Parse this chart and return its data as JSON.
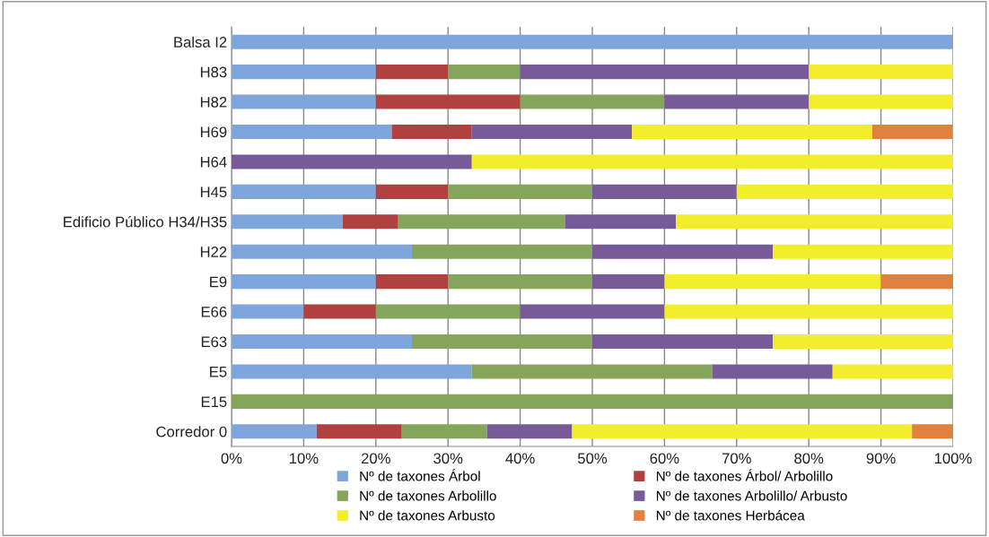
{
  "chart_data": {
    "type": "bar",
    "orientation": "horizontal",
    "stacked": true,
    "categories": [
      "Balsa I2",
      "H83",
      "H82",
      "H69",
      "H64",
      "H45",
      "Edificio Público H34/H35",
      "H22",
      "E9",
      "E66",
      "E63",
      "E5",
      "E15",
      "Corredor 0"
    ],
    "series": [
      {
        "name": "Nº de taxones Árbol",
        "color": "#7ea6dc",
        "values": [
          100,
          20,
          20,
          22.2,
          0,
          20,
          15.4,
          25,
          20,
          10,
          25,
          33.3,
          0,
          11.8
        ]
      },
      {
        "name": "Nº de taxones Árbol/ Arbolillo",
        "color": "#b0413e",
        "values": [
          0,
          10,
          20,
          11.1,
          0,
          10,
          7.7,
          0,
          10,
          10,
          0,
          0,
          0,
          11.8
        ]
      },
      {
        "name": "Nº de taxones Arbolillo",
        "color": "#84a55a",
        "values": [
          0,
          10,
          20,
          0,
          0,
          20,
          23.1,
          25,
          20,
          20,
          25,
          33.3,
          100,
          11.8
        ]
      },
      {
        "name": "Nº de taxones Arbolillo/ Arbusto",
        "color": "#775b99",
        "values": [
          0,
          40,
          20,
          22.2,
          33.3,
          20,
          15.4,
          25,
          10,
          20,
          25,
          16.7,
          0,
          11.8
        ]
      },
      {
        "name": "Nº de taxones Arbusto",
        "color": "#f2ee2c",
        "values": [
          0,
          20,
          20,
          33.3,
          66.7,
          30,
          38.5,
          25,
          30,
          40,
          25,
          16.7,
          0,
          47.1
        ]
      },
      {
        "name": "Nº de taxones Herbácea",
        "color": "#e0823d",
        "values": [
          0,
          0,
          0,
          11.1,
          0,
          0,
          0,
          0,
          10,
          0,
          0,
          0,
          0,
          5.9
        ]
      }
    ],
    "xlim": [
      0,
      100
    ],
    "xticks": [
      {
        "value": 0,
        "label": "0%"
      },
      {
        "value": 10,
        "label": "10%"
      },
      {
        "value": 20,
        "label": "20%"
      },
      {
        "value": 30,
        "label": "30%"
      },
      {
        "value": 40,
        "label": "40%"
      },
      {
        "value": 50,
        "label": "50%"
      },
      {
        "value": 60,
        "label": "60%"
      },
      {
        "value": 70,
        "label": "70%"
      },
      {
        "value": 80,
        "label": "80%"
      },
      {
        "value": 90,
        "label": "90%"
      },
      {
        "value": 100,
        "label": "100%"
      }
    ],
    "grid": "x",
    "legend": "bottom"
  }
}
